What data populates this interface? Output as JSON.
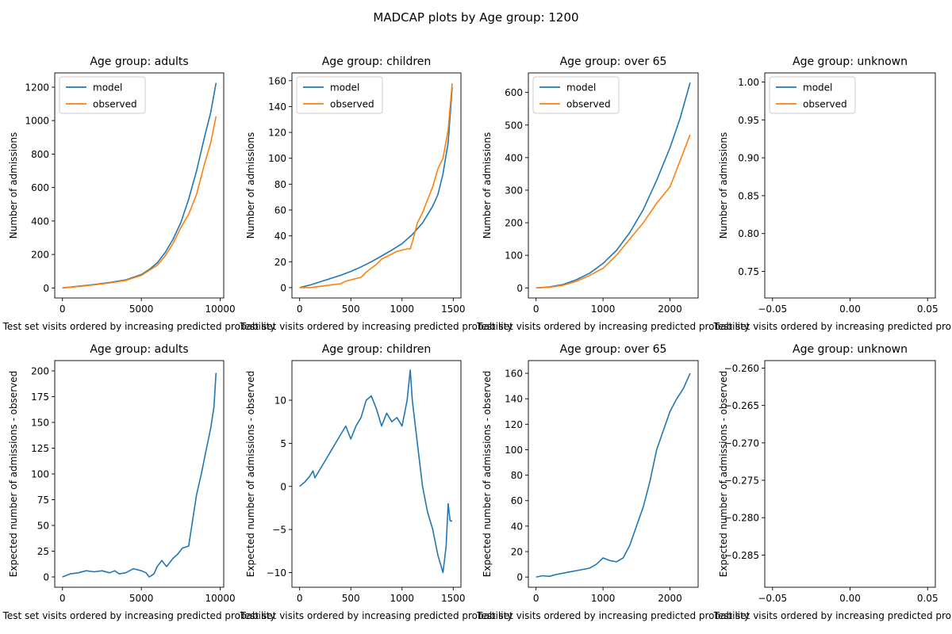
{
  "figure": {
    "suptitle": "MADCAP plots by Age group: 1200"
  },
  "colors": {
    "model": "#1f77b4",
    "observed": "#ff7f0e",
    "difference": "#1f77b4",
    "axes": "#000000",
    "background": "#ffffff"
  },
  "chart_data": [
    {
      "type": "line",
      "title": "Age group: adults",
      "xlabel": "Test set visits ordered by increasing predicted probability",
      "ylabel": "Number of admissions",
      "xlim": [
        -490,
        10220
      ],
      "ylim": [
        -60,
        1285
      ],
      "xticks": [
        0,
        5000,
        10000
      ],
      "yticks": [
        0,
        200,
        400,
        600,
        800,
        1000,
        1200
      ],
      "xtick_labels": [
        "0",
        "5000",
        "10000"
      ],
      "ytick_labels": [
        "0",
        "200",
        "400",
        "600",
        "800",
        "1000",
        "1200"
      ],
      "legend": "upper-left",
      "grid": false,
      "series": [
        {
          "name": "model",
          "color": "#1f77b4",
          "x": [
            0,
            1000,
            2000,
            3000,
            4000,
            5000,
            5500,
            6000,
            6500,
            7000,
            7500,
            8000,
            8500,
            9000,
            9400,
            9730
          ],
          "y": [
            0,
            10,
            20,
            33,
            48,
            80,
            110,
            150,
            210,
            290,
            390,
            530,
            700,
            900,
            1050,
            1225
          ]
        },
        {
          "name": "observed",
          "color": "#ff7f0e",
          "x": [
            0,
            1000,
            2000,
            3000,
            4000,
            5000,
            5500,
            6000,
            6500,
            7000,
            7500,
            8000,
            8500,
            9000,
            9400,
            9730
          ],
          "y": [
            0,
            8,
            18,
            30,
            45,
            75,
            105,
            135,
            190,
            265,
            360,
            440,
            560,
            740,
            870,
            1025
          ]
        }
      ]
    },
    {
      "type": "line",
      "title": "Age group: children",
      "xlabel": "Test set visits ordered by increasing predicted probability",
      "ylabel": "Number of admissions",
      "xlim": [
        -75,
        1575
      ],
      "ylim": [
        -8,
        166
      ],
      "xticks": [
        0,
        500,
        1000,
        1500
      ],
      "yticks": [
        0,
        20,
        40,
        60,
        80,
        100,
        120,
        140,
        160
      ],
      "xtick_labels": [
        "0",
        "500",
        "1000",
        "1500"
      ],
      "ytick_labels": [
        "0",
        "20",
        "40",
        "60",
        "80",
        "100",
        "120",
        "140",
        "160"
      ],
      "legend": "upper-left",
      "grid": false,
      "series": [
        {
          "name": "model",
          "color": "#1f77b4",
          "x": [
            0,
            100,
            200,
            300,
            400,
            500,
            600,
            700,
            800,
            900,
            1000,
            1100,
            1200,
            1300,
            1350,
            1400,
            1450,
            1490
          ],
          "y": [
            0,
            2,
            4.5,
            7,
            9.5,
            12.5,
            16,
            20,
            24.5,
            29,
            34,
            41,
            50,
            63,
            72,
            88,
            112,
            155
          ]
        },
        {
          "name": "observed",
          "color": "#ff7f0e",
          "x": [
            0,
            100,
            200,
            300,
            400,
            450,
            500,
            600,
            650,
            700,
            750,
            800,
            850,
            900,
            950,
            1000,
            1050,
            1080,
            1100,
            1150,
            1200,
            1250,
            1300,
            1350,
            1400,
            1450,
            1490
          ],
          "y": [
            0,
            0,
            1,
            2,
            3,
            5,
            6,
            8,
            12,
            15,
            18,
            22,
            24,
            26,
            28,
            29,
            30,
            30,
            35,
            50,
            58,
            68,
            78,
            92,
            100,
            122,
            158
          ]
        }
      ]
    },
    {
      "type": "line",
      "title": "Age group: over 65",
      "xlabel": "Test set visits ordered by increasing predicted probability",
      "ylabel": "Number of admissions",
      "xlim": [
        -115,
        2420
      ],
      "ylim": [
        -31,
        660
      ],
      "xticks": [
        0,
        1000,
        2000
      ],
      "yticks": [
        0,
        100,
        200,
        300,
        400,
        500,
        600
      ],
      "xtick_labels": [
        "0",
        "1000",
        "2000"
      ],
      "ytick_labels": [
        "0",
        "100",
        "200",
        "300",
        "400",
        "500",
        "600"
      ],
      "legend": "upper-left",
      "grid": false,
      "series": [
        {
          "name": "model",
          "color": "#1f77b4",
          "x": [
            0,
            200,
            400,
            600,
            800,
            1000,
            1200,
            1400,
            1600,
            1800,
            2000,
            2150,
            2300
          ],
          "y": [
            0,
            3,
            10,
            25,
            45,
            75,
            115,
            170,
            240,
            330,
            430,
            520,
            630
          ]
        },
        {
          "name": "observed",
          "color": "#ff7f0e",
          "x": [
            0,
            200,
            400,
            600,
            800,
            1000,
            1200,
            1400,
            1600,
            1800,
            2000,
            2150,
            2300
          ],
          "y": [
            0,
            2,
            8,
            20,
            38,
            60,
            100,
            150,
            200,
            260,
            310,
            390,
            470
          ]
        }
      ]
    },
    {
      "type": "line",
      "title": "Age group: unknown",
      "xlabel": "Test set visits ordered by increasing predicted probability",
      "ylabel": "Number of admissions",
      "xlim": [
        -0.055,
        0.055
      ],
      "ylim": [
        0.715,
        1.012
      ],
      "xticks": [
        -0.05,
        0,
        0.05
      ],
      "yticks": [
        0.75,
        0.8,
        0.85,
        0.9,
        0.95,
        1.0
      ],
      "xtick_labels": [
        "−0.05",
        "0.00",
        "0.05"
      ],
      "ytick_labels": [
        "0.75",
        "0.80",
        "0.85",
        "0.90",
        "0.95",
        "1.00"
      ],
      "legend": "upper-left",
      "grid": false,
      "series": [
        {
          "name": "model",
          "color": "#1f77b4",
          "x": [],
          "y": []
        },
        {
          "name": "observed",
          "color": "#ff7f0e",
          "x": [],
          "y": []
        }
      ]
    },
    {
      "type": "line",
      "title": "Age group: adults",
      "xlabel": "Test set visits ordered by increasing predicted probability",
      "ylabel": "Expected number of admissions - observed",
      "xlim": [
        -490,
        10220
      ],
      "ylim": [
        -10,
        210
      ],
      "xticks": [
        0,
        5000,
        10000
      ],
      "yticks": [
        0,
        25,
        50,
        75,
        100,
        125,
        150,
        175,
        200
      ],
      "xtick_labels": [
        "0",
        "5000",
        "10000"
      ],
      "ytick_labels": [
        "0",
        "25",
        "50",
        "75",
        "100",
        "125",
        "150",
        "175",
        "200"
      ],
      "grid": false,
      "series": [
        {
          "color": "#1f77b4",
          "x": [
            0,
            500,
            1000,
            1500,
            2000,
            2500,
            3000,
            3300,
            3600,
            4000,
            4500,
            5000,
            5300,
            5500,
            5800,
            6000,
            6300,
            6600,
            7000,
            7300,
            7600,
            8000,
            8200,
            8500,
            8800,
            9000,
            9200,
            9400,
            9600,
            9730
          ],
          "y": [
            0,
            3,
            4,
            6,
            5,
            6,
            4,
            6,
            3,
            4,
            8,
            6,
            4,
            0,
            3,
            10,
            16,
            10,
            18,
            22,
            28,
            30,
            50,
            80,
            100,
            115,
            130,
            145,
            165,
            198
          ]
        }
      ]
    },
    {
      "type": "line",
      "title": "Age group: children",
      "xlabel": "Test set visits ordered by increasing predicted probability",
      "ylabel": "Expected number of admissions - observed",
      "xlim": [
        -75,
        1575
      ],
      "ylim": [
        -11.7,
        14.6
      ],
      "xticks": [
        0,
        500,
        1000,
        1500
      ],
      "yticks": [
        -10,
        -5,
        0,
        5,
        10
      ],
      "xtick_labels": [
        "0",
        "500",
        "1000",
        "1500"
      ],
      "ytick_labels": [
        "−10",
        "−5",
        "0",
        "5",
        "10"
      ],
      "grid": false,
      "series": [
        {
          "color": "#1f77b4",
          "x": [
            0,
            50,
            100,
            130,
            150,
            200,
            250,
            300,
            350,
            400,
            450,
            500,
            550,
            600,
            650,
            700,
            750,
            800,
            850,
            900,
            950,
            1000,
            1050,
            1080,
            1100,
            1150,
            1200,
            1250,
            1300,
            1350,
            1400,
            1430,
            1450,
            1470,
            1490
          ],
          "y": [
            0,
            0.5,
            1.2,
            1.8,
            1,
            2,
            3,
            4,
            5,
            6,
            7,
            5.5,
            7,
            8,
            10,
            10.5,
            9,
            7,
            8.5,
            7.5,
            8,
            7,
            10,
            13.5,
            10,
            5,
            0,
            -3,
            -5,
            -8,
            -10,
            -7,
            -2,
            -4,
            -4
          ]
        }
      ]
    },
    {
      "type": "line",
      "title": "Age group: over 65",
      "xlabel": "Test set visits ordered by increasing predicted probability",
      "ylabel": "Expected number of admissions - observed",
      "xlim": [
        -115,
        2420
      ],
      "ylim": [
        -8,
        170
      ],
      "xticks": [
        0,
        1000,
        2000
      ],
      "yticks": [
        0,
        20,
        40,
        60,
        80,
        100,
        120,
        140,
        160
      ],
      "xtick_labels": [
        "0",
        "1000",
        "2000"
      ],
      "ytick_labels": [
        "0",
        "20",
        "40",
        "60",
        "80",
        "100",
        "120",
        "140",
        "160"
      ],
      "grid": false,
      "series": [
        {
          "color": "#1f77b4",
          "x": [
            0,
            100,
            200,
            300,
            400,
            500,
            600,
            700,
            800,
            900,
            1000,
            1100,
            1200,
            1300,
            1400,
            1500,
            1600,
            1700,
            1800,
            1900,
            2000,
            2100,
            2200,
            2300
          ],
          "y": [
            0,
            1,
            0.5,
            2,
            3,
            4,
            5,
            6,
            7,
            10,
            15,
            13,
            12,
            15,
            25,
            40,
            55,
            75,
            100,
            115,
            130,
            140,
            148,
            160
          ]
        }
      ]
    },
    {
      "type": "line",
      "title": "Age group: unknown",
      "xlabel": "Test set visits ordered by increasing predicted probability",
      "ylabel": "Expected number of admissions - observed",
      "xlim": [
        -0.055,
        0.055
      ],
      "ylim": [
        -0.2893,
        -0.259
      ],
      "xticks": [
        -0.05,
        0,
        0.05
      ],
      "yticks": [
        -0.285,
        -0.28,
        -0.275,
        -0.27,
        -0.265,
        -0.26
      ],
      "xtick_labels": [
        "−0.05",
        "0.00",
        "0.05"
      ],
      "ytick_labels": [
        "−0.285",
        "−0.280",
        "−0.275",
        "−0.270",
        "−0.265",
        "−0.260"
      ],
      "grid": false,
      "series": [
        {
          "color": "#1f77b4",
          "x": [],
          "y": []
        }
      ]
    }
  ]
}
